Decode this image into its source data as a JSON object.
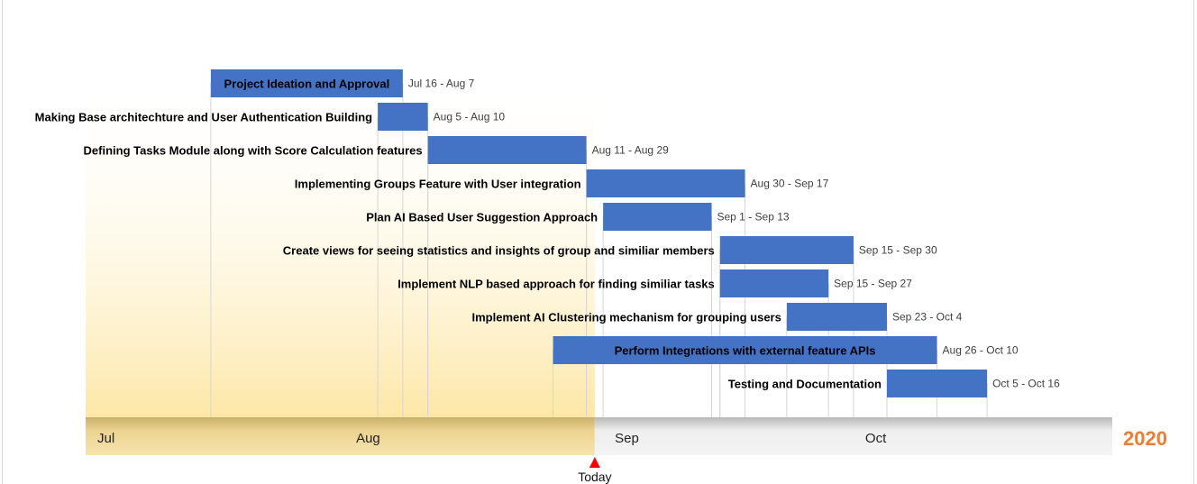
{
  "chart_data": {
    "type": "gantt",
    "year": "2020",
    "today_label": "Today",
    "today_date": "2020-08-31",
    "axis_range": [
      "2020-07-01",
      "2020-10-31"
    ],
    "months": [
      {
        "label": "Jul",
        "start": "2020-07-01"
      },
      {
        "label": "Aug",
        "start": "2020-08-01"
      },
      {
        "label": "Sep",
        "start": "2020-09-01"
      },
      {
        "label": "Oct",
        "start": "2020-10-01"
      }
    ],
    "tasks": [
      {
        "name": "Project Ideation and Approval",
        "date_label": "Jul 16 - Aug 7",
        "start": "2020-07-16",
        "end": "2020-08-07",
        "label_inside": true
      },
      {
        "name": "Making Base architechture and User Authentication Building",
        "date_label": "Aug 5 - Aug 10",
        "start": "2020-08-05",
        "end": "2020-08-10",
        "label_inside": false
      },
      {
        "name": "Defining Tasks Module along with Score Calculation features",
        "date_label": "Aug 11 - Aug 29",
        "start": "2020-08-11",
        "end": "2020-08-29",
        "label_inside": false
      },
      {
        "name": "Implementing Groups Feature with User integration",
        "date_label": "Aug 30 - Sep 17",
        "start": "2020-08-30",
        "end": "2020-09-17",
        "label_inside": false
      },
      {
        "name": "Plan AI Based User Suggestion Approach",
        "date_label": "Sep 1 - Sep 13",
        "start": "2020-09-01",
        "end": "2020-09-13",
        "label_inside": false
      },
      {
        "name": "Create views for seeing statistics and insights of group and similiar members",
        "date_label": "Sep 15 - Sep 30",
        "start": "2020-09-15",
        "end": "2020-09-30",
        "label_inside": false
      },
      {
        "name": "Implement NLP based approach for finding similiar tasks",
        "date_label": "Sep 15 - Sep 27",
        "start": "2020-09-15",
        "end": "2020-09-27",
        "label_inside": false
      },
      {
        "name": "Implement AI Clustering mechanism for grouping users",
        "date_label": "Sep 23 - Oct 4",
        "start": "2020-09-23",
        "end": "2020-10-04",
        "label_inside": false
      },
      {
        "name": "Perform Integrations with external feature APIs",
        "date_label": "Aug 26 - Oct 10",
        "start": "2020-08-26",
        "end": "2020-10-10",
        "label_inside": true
      },
      {
        "name": "Testing and Documentation",
        "date_label": "Oct 5 - Oct 16",
        "start": "2020-10-05",
        "end": "2020-10-16",
        "label_inside": false
      }
    ],
    "colors": {
      "bar": "#4472c4",
      "elapsed_band": "#fde7a6",
      "axis_elapsed": "#ecd390",
      "axis_future": "#eeeeee",
      "year": "#ed7d31",
      "today_marker": "#ff0000"
    }
  }
}
